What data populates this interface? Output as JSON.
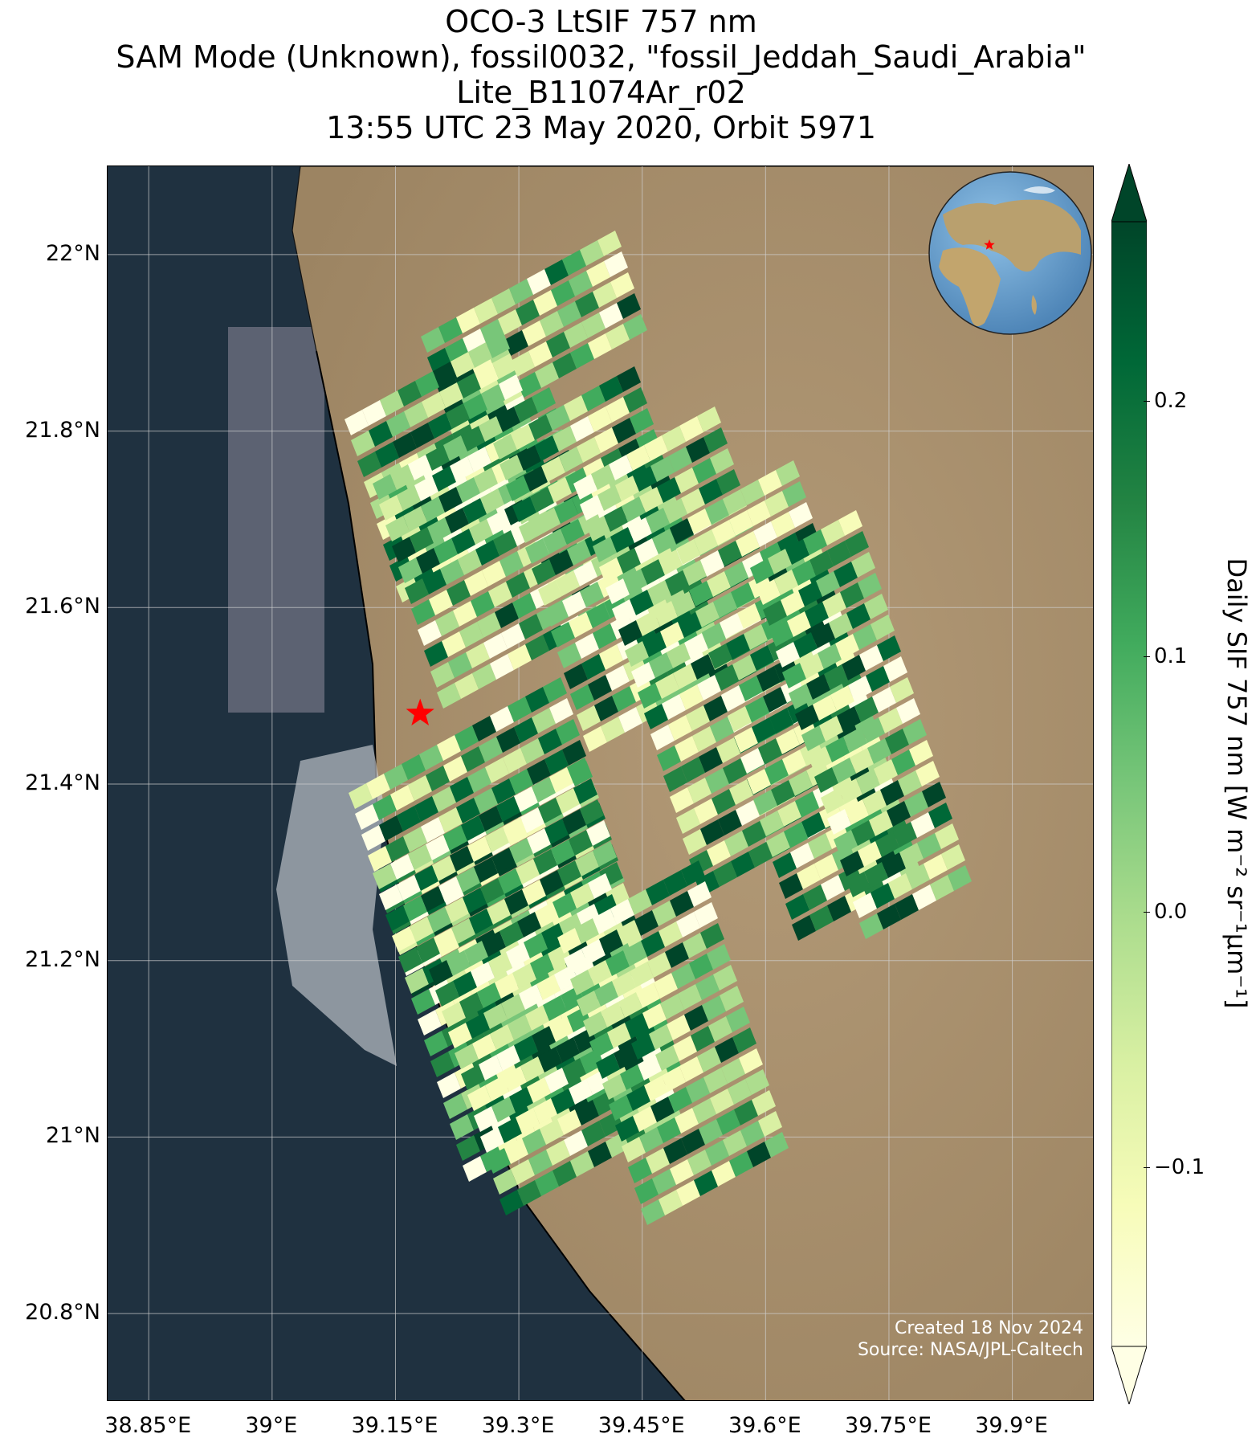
{
  "title": {
    "line1": "OCO-3 LtSIF 757 nm",
    "line2": "SAM Mode (Unknown), fossil0032, \"fossil_Jeddah_Saudi_Arabia\"",
    "line3": "Lite_B11074Ar_r02",
    "line4": "13:55 UTC 23 May 2020, Orbit 5971"
  },
  "map": {
    "lon_range": [
      38.8,
      40.0
    ],
    "lat_range": [
      20.7,
      22.1
    ],
    "lat_ticks": [
      {
        "value": 22.0,
        "label": "22°N"
      },
      {
        "value": 21.8,
        "label": "21.8°N"
      },
      {
        "value": 21.6,
        "label": "21.6°N"
      },
      {
        "value": 21.4,
        "label": "21.4°N"
      },
      {
        "value": 21.2,
        "label": "21.2°N"
      },
      {
        "value": 21.0,
        "label": "21°N"
      },
      {
        "value": 20.8,
        "label": "20.8°N"
      }
    ],
    "lon_ticks": [
      {
        "value": 38.85,
        "label": "38.85°E"
      },
      {
        "value": 39.0,
        "label": "39°E"
      },
      {
        "value": 39.15,
        "label": "39.15°E"
      },
      {
        "value": 39.3,
        "label": "39.3°E"
      },
      {
        "value": 39.45,
        "label": "39.45°E"
      },
      {
        "value": 39.6,
        "label": "39.6°E"
      },
      {
        "value": 39.75,
        "label": "39.75°E"
      },
      {
        "value": 39.9,
        "label": "39.9°E"
      }
    ],
    "target_marker": {
      "lon": 39.18,
      "lat": 21.48,
      "color": "#ff0000"
    },
    "sea_color": "#1f3140",
    "land_color": "#a88e6c"
  },
  "colorbar": {
    "label": "Daily SIF 757 nm [W m⁻² sr⁻¹μm⁻¹]",
    "range": [
      -0.17,
      0.27
    ],
    "extend": "both",
    "colormap": "YlGn",
    "ticks": [
      {
        "value": 0.2,
        "label": "0.2"
      },
      {
        "value": 0.1,
        "label": "0.1"
      },
      {
        "value": 0.0,
        "label": "0.0"
      },
      {
        "value": -0.1,
        "label": "−0.1"
      }
    ],
    "colors": [
      "#ffffe5",
      "#f7fcb9",
      "#d9f0a3",
      "#addd8e",
      "#78c679",
      "#41ab5d",
      "#238443",
      "#006837",
      "#004529"
    ]
  },
  "inset_globe": {
    "ocean_color": "#6fa7d4",
    "land_color": "#b9a06e",
    "marker_color": "#ff0000"
  },
  "credits": {
    "created": "Created 18 Nov 2024",
    "source": "Source: NASA/JPL-Caltech"
  }
}
